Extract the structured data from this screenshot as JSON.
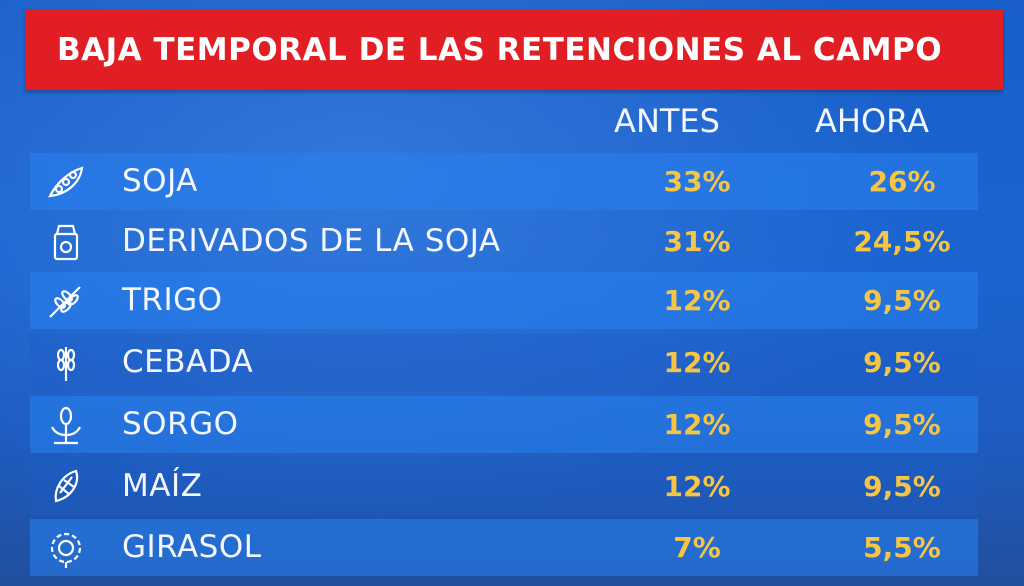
{
  "title": "BAJA TEMPORAL DE LAS RETENCIONES AL CAMPO",
  "headers": {
    "antes": "ANTES",
    "ahora": "AHORA"
  },
  "rows": [
    {
      "product": "SOJA",
      "antes": "33%",
      "ahora": "26%",
      "icon": "soybean-pod-icon"
    },
    {
      "product": "DERIVADOS DE LA SOJA",
      "antes": "31%",
      "ahora": "24,5%",
      "icon": "milk-carton-icon"
    },
    {
      "product": "TRIGO",
      "antes": "12%",
      "ahora": "9,5%",
      "icon": "wheat-icon"
    },
    {
      "product": "CEBADA",
      "antes": "12%",
      "ahora": "9,5%",
      "icon": "barley-icon"
    },
    {
      "product": "SORGO",
      "antes": "12%",
      "ahora": "9,5%",
      "icon": "sorghum-icon"
    },
    {
      "product": "MAÍZ",
      "antes": "12%",
      "ahora": "9,5%",
      "icon": "corn-icon"
    },
    {
      "product": "GIRASOL",
      "antes": "7%",
      "ahora": "5,5%",
      "icon": "sunflower-icon"
    }
  ],
  "colors": {
    "title_background": "#e01e24",
    "background": "#1b64d0",
    "value_text": "#f6c544",
    "label_text": "#f4f7ff"
  }
}
